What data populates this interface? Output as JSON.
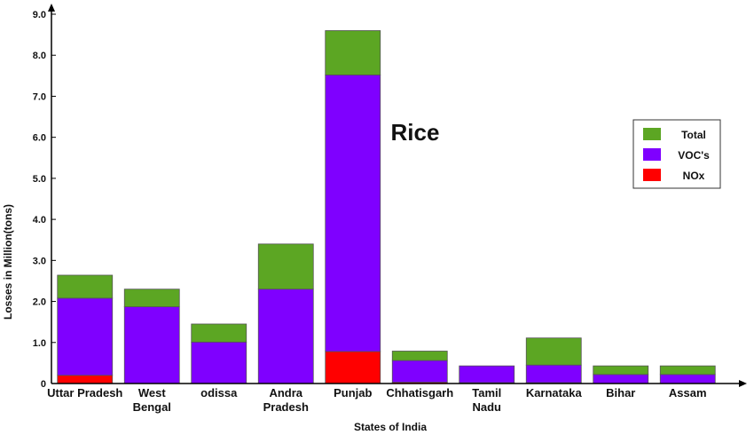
{
  "chart_data": {
    "type": "bar",
    "stacked": true,
    "title": "Rice",
    "xlabel": "States of India",
    "ylabel": "Losses in Million(tons)",
    "ylim": [
      0,
      9.0
    ],
    "y_ticks": [
      "0",
      "1.0",
      "2.0",
      "3.0",
      "4.0",
      "5.0",
      "6.0",
      "7.0",
      "8.0",
      "9.0"
    ],
    "y_tick_values": [
      0,
      1.0,
      2.0,
      3.0,
      4.0,
      5.0,
      6.0,
      7.0,
      8.0,
      9.0
    ],
    "category_lines": [
      [
        "Uttar Pradesh"
      ],
      [
        "West",
        "Bengal"
      ],
      [
        "odissa"
      ],
      [
        "Andra",
        "Pradesh"
      ],
      [
        "Punjab"
      ],
      [
        "Chhatisgarh"
      ],
      [
        "Tamil",
        "Nadu"
      ],
      [
        "Karnataka"
      ],
      [
        "Bihar"
      ],
      [
        "Assam"
      ]
    ],
    "series": [
      {
        "name": "NOx",
        "color": "#ff0000",
        "values": [
          0.2,
          0.0,
          0.0,
          0.0,
          0.78,
          0.03,
          0.02,
          0.02,
          0.0,
          0.0
        ]
      },
      {
        "name": "VOC's",
        "color": "#7f00ff",
        "values": [
          1.88,
          1.87,
          1.01,
          2.3,
          6.74,
          0.53,
          0.41,
          0.43,
          0.22,
          0.22
        ]
      },
      {
        "name": "Total",
        "color": "#5ca623",
        "values": [
          0.56,
          0.43,
          0.44,
          1.1,
          1.08,
          0.23,
          0.0,
          0.66,
          0.21,
          0.21
        ]
      }
    ],
    "legend": {
      "placement": "right",
      "items": [
        {
          "label": "Total",
          "color": "#5ca623"
        },
        {
          "label": "VOC's",
          "color": "#7f00ff"
        },
        {
          "label": "NOx",
          "color": "#ff0000"
        }
      ]
    },
    "grid": false
  }
}
